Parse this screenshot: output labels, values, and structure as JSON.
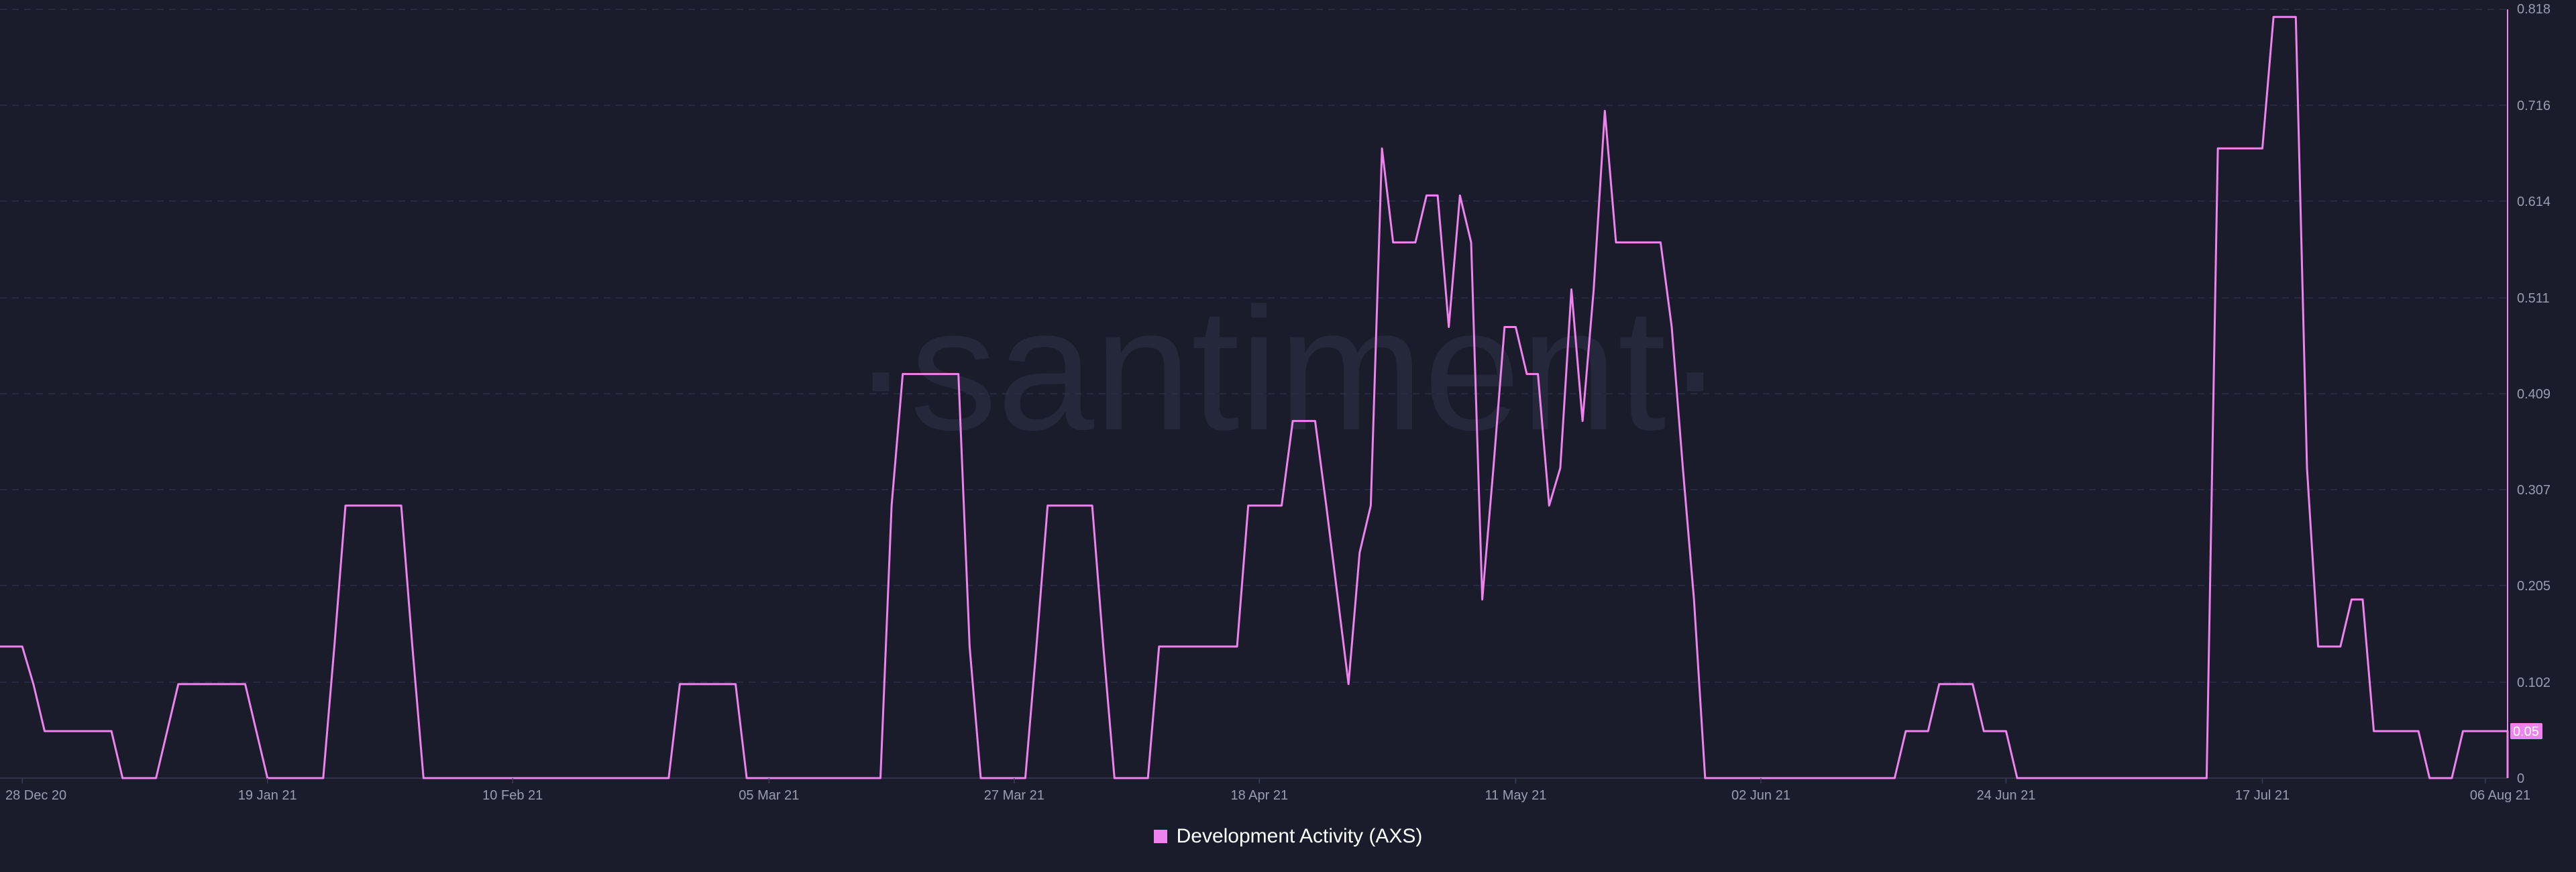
{
  "colors": {
    "background": "#1a1c2c",
    "series": "#ee82ee",
    "grid": "#2c2f45",
    "text": "#9a9db0",
    "watermark": "#25273a"
  },
  "watermark": "·santiment·",
  "chart_data": {
    "type": "line",
    "title": "",
    "xlabel": "",
    "ylabel": "",
    "x_range": [
      "2020-12-28",
      "2021-08-06"
    ],
    "ylim": [
      0,
      0.818
    ],
    "y_ticks": [
      "0",
      "0.102",
      "0.205",
      "0.307",
      "0.409",
      "0.511",
      "0.614",
      "0.716",
      "0.818"
    ],
    "x_ticks": [
      {
        "date": "2020-12-28",
        "label": "28 Dec 20"
      },
      {
        "date": "2021-01-19",
        "label": "19 Jan 21"
      },
      {
        "date": "2021-02-10",
        "label": "10 Feb 21"
      },
      {
        "date": "2021-03-05",
        "label": "05 Mar 21"
      },
      {
        "date": "2021-03-27",
        "label": "27 Mar 21"
      },
      {
        "date": "2021-04-18",
        "label": "18 Apr 21"
      },
      {
        "date": "2021-05-11",
        "label": "11 May 21"
      },
      {
        "date": "2021-06-02",
        "label": "02 Jun 21"
      },
      {
        "date": "2021-06-24",
        "label": "24 Jun 21"
      },
      {
        "date": "2021-07-17",
        "label": "17 Jul 21"
      },
      {
        "date": "2021-08-06",
        "label": "06 Aug 21"
      }
    ],
    "grid": true,
    "legend_position": "bottom-center",
    "current_value_label": "0.05",
    "series": [
      {
        "name": "Development Activity (AXS)",
        "color": "#ee82ee",
        "points": [
          [
            "2020-12-26",
            0.14
          ],
          [
            "2020-12-28",
            0.14
          ],
          [
            "2020-12-29",
            0.1
          ],
          [
            "2020-12-30",
            0.05
          ],
          [
            "2021-01-05",
            0.05
          ],
          [
            "2021-01-06",
            0.0
          ],
          [
            "2021-01-09",
            0.0
          ],
          [
            "2021-01-10",
            0.05
          ],
          [
            "2021-01-11",
            0.1
          ],
          [
            "2021-01-17",
            0.1
          ],
          [
            "2021-01-18",
            0.05
          ],
          [
            "2021-01-19",
            0.0
          ],
          [
            "2021-01-24",
            0.0
          ],
          [
            "2021-01-25",
            0.14
          ],
          [
            "2021-01-26",
            0.29
          ],
          [
            "2021-01-31",
            0.29
          ],
          [
            "2021-02-01",
            0.14
          ],
          [
            "2021-02-02",
            0.0
          ],
          [
            "2021-02-24",
            0.0
          ],
          [
            "2021-02-25",
            0.1
          ],
          [
            "2021-03-02",
            0.1
          ],
          [
            "2021-03-03",
            0.0
          ],
          [
            "2021-03-15",
            0.0
          ],
          [
            "2021-03-16",
            0.29
          ],
          [
            "2021-03-17",
            0.43
          ],
          [
            "2021-03-22",
            0.43
          ],
          [
            "2021-03-23",
            0.14
          ],
          [
            "2021-03-24",
            0.0
          ],
          [
            "2021-03-28",
            0.0
          ],
          [
            "2021-03-29",
            0.14
          ],
          [
            "2021-03-30",
            0.29
          ],
          [
            "2021-04-03",
            0.29
          ],
          [
            "2021-04-04",
            0.14
          ],
          [
            "2021-04-05",
            0.0
          ],
          [
            "2021-04-08",
            0.0
          ],
          [
            "2021-04-09",
            0.14
          ],
          [
            "2021-04-15",
            0.14
          ],
          [
            "2021-04-16",
            0.14
          ],
          [
            "2021-04-17",
            0.29
          ],
          [
            "2021-04-20",
            0.29
          ],
          [
            "2021-04-21",
            0.38
          ],
          [
            "2021-04-23",
            0.38
          ],
          [
            "2021-04-24",
            0.29
          ],
          [
            "2021-04-26",
            0.1
          ],
          [
            "2021-04-27",
            0.24
          ],
          [
            "2021-04-28",
            0.29
          ],
          [
            "2021-04-29",
            0.67
          ],
          [
            "2021-04-30",
            0.57
          ],
          [
            "2021-05-02",
            0.57
          ],
          [
            "2021-05-03",
            0.62
          ],
          [
            "2021-05-04",
            0.62
          ],
          [
            "2021-05-05",
            0.48
          ],
          [
            "2021-05-06",
            0.62
          ],
          [
            "2021-05-07",
            0.57
          ],
          [
            "2021-05-08",
            0.19
          ],
          [
            "2021-05-09",
            0.33
          ],
          [
            "2021-05-10",
            0.48
          ],
          [
            "2021-05-11",
            0.48
          ],
          [
            "2021-05-12",
            0.43
          ],
          [
            "2021-05-13",
            0.43
          ],
          [
            "2021-05-14",
            0.29
          ],
          [
            "2021-05-15",
            0.33
          ],
          [
            "2021-05-16",
            0.52
          ],
          [
            "2021-05-17",
            0.38
          ],
          [
            "2021-05-18",
            0.52
          ],
          [
            "2021-05-19",
            0.71
          ],
          [
            "2021-05-20",
            0.57
          ],
          [
            "2021-05-24",
            0.57
          ],
          [
            "2021-05-25",
            0.48
          ],
          [
            "2021-05-26",
            0.33
          ],
          [
            "2021-05-27",
            0.19
          ],
          [
            "2021-05-28",
            0.0
          ],
          [
            "2021-06-14",
            0.0
          ],
          [
            "2021-06-15",
            0.05
          ],
          [
            "2021-06-17",
            0.05
          ],
          [
            "2021-06-18",
            0.1
          ],
          [
            "2021-06-21",
            0.1
          ],
          [
            "2021-06-22",
            0.05
          ],
          [
            "2021-06-24",
            0.05
          ],
          [
            "2021-06-25",
            0.0
          ],
          [
            "2021-07-12",
            0.0
          ],
          [
            "2021-07-13",
            0.67
          ],
          [
            "2021-07-17",
            0.67
          ],
          [
            "2021-07-18",
            0.81
          ],
          [
            "2021-07-20",
            0.81
          ],
          [
            "2021-07-21",
            0.33
          ],
          [
            "2021-07-22",
            0.14
          ],
          [
            "2021-07-24",
            0.14
          ],
          [
            "2021-07-25",
            0.19
          ],
          [
            "2021-07-26",
            0.19
          ],
          [
            "2021-07-27",
            0.05
          ],
          [
            "2021-07-31",
            0.05
          ],
          [
            "2021-08-01",
            0.0
          ],
          [
            "2021-08-03",
            0.0
          ],
          [
            "2021-08-04",
            0.05
          ],
          [
            "2021-08-09",
            0.05
          ],
          [
            "2021-08-10",
            0.0
          ]
        ]
      }
    ]
  }
}
